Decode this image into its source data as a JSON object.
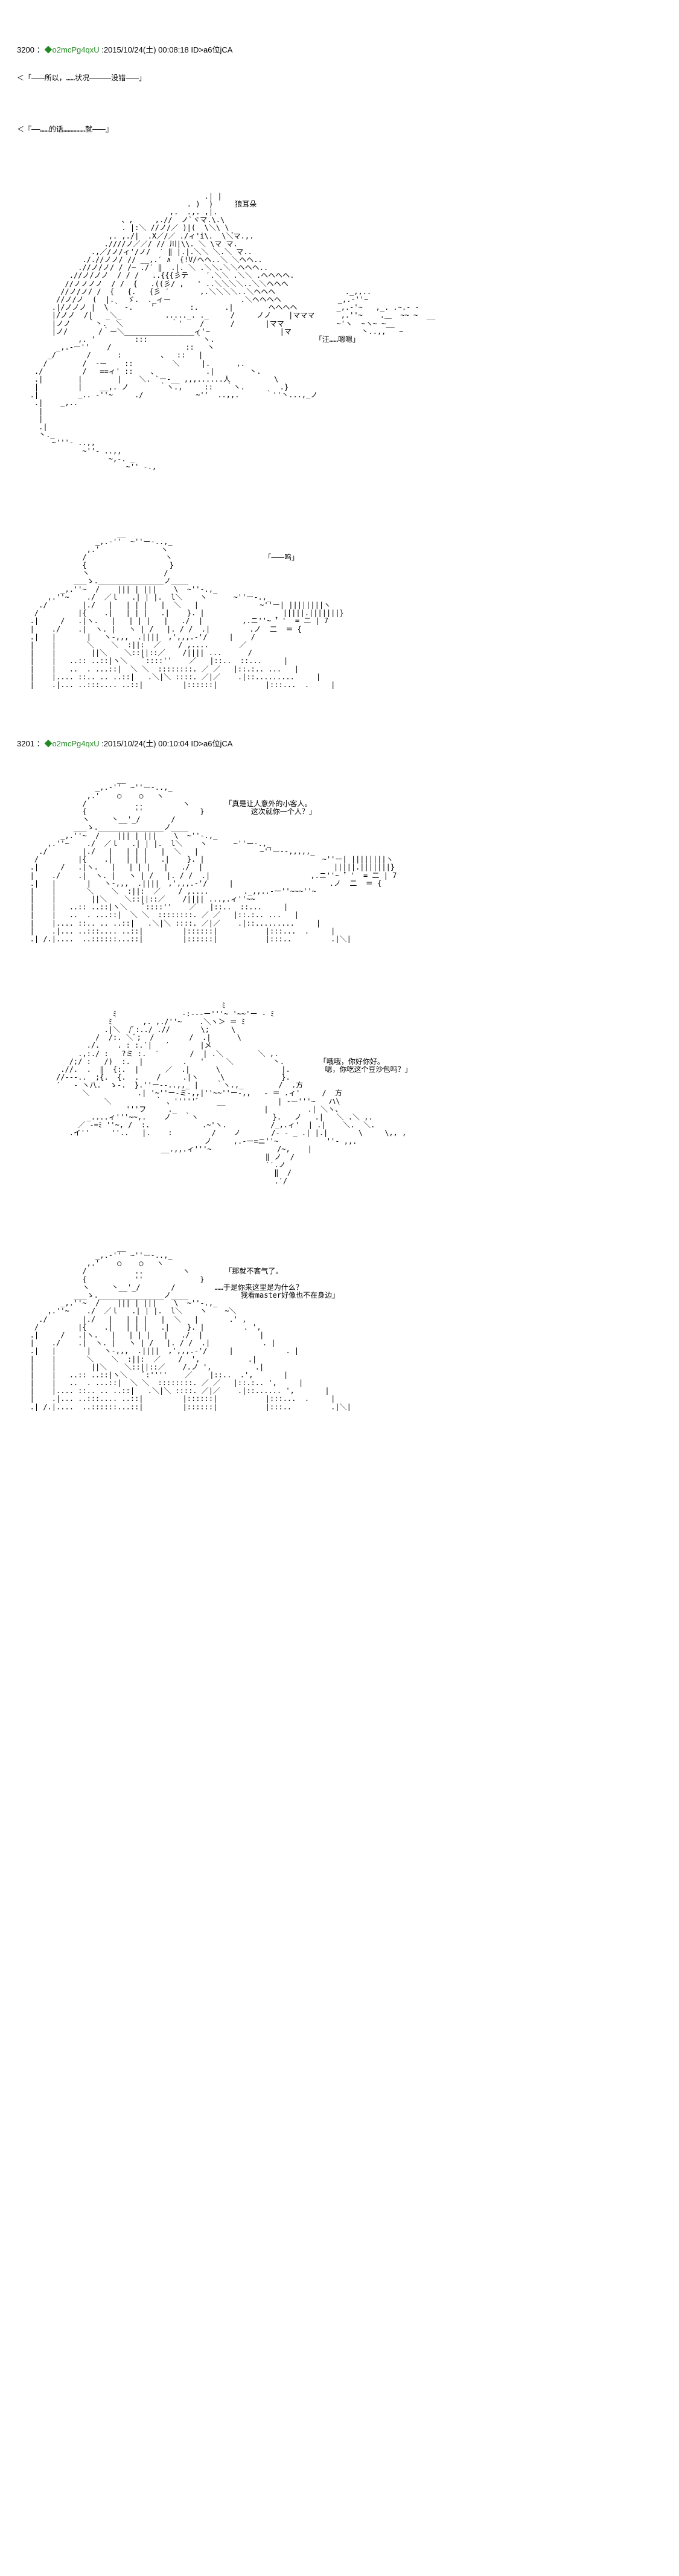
{
  "posts": [
    {
      "num": "3200",
      "trip": "◆o2mcPg4qxU",
      "date": ":2015/10/24(土) 00:08:18",
      "id": "ID>a6位jCA",
      "lines": [
        "＜「―――所以，……状况―――――没错―――」",
        "",
        "＜『――……的话……………就―――』"
      ],
      "pic1_labels": {
        "ear": "狼耳朵",
        "wan": "「汪……嗯嗯」"
      },
      "pic2_labels": {
        "wu": "「―――呜」"
      }
    },
    {
      "num": "3201",
      "trip": "◆o2mcPg4qxU",
      "date": ":2015/10/24(土) 00:10:04",
      "id": "ID>a6位jCA",
      "pic3_labels": {
        "l1": "「真是让人意外的小客人。",
        "l2": "　这次就你一个人？」"
      },
      "pic4_labels": {
        "l1": "「哦哦，你好你好。",
        "l2": " 嗯，你吃这个豆沙包吗？」"
      },
      "pic5_labels": {
        "l1": "「那就不客气了。",
        "l2": "",
        "l3": " ……于是你来这里是为什么？",
        "l4": " 我看master好像也不在身边」"
      }
    }
  ]
}
